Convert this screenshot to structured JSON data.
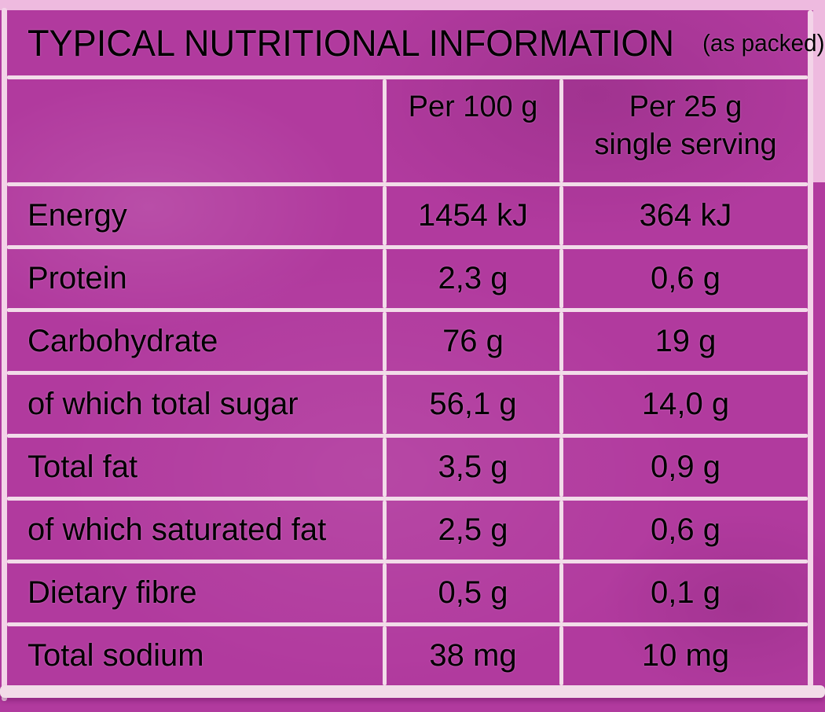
{
  "label": {
    "title": "TYPICAL NUTRITIONAL INFORMATION",
    "title_suffix": "(as packed)"
  },
  "table": {
    "column_headers": {
      "col1": "",
      "col2": "Per 100 g",
      "col3_line1": "Per 25 g",
      "col3_line2": "single serving"
    },
    "rows": [
      {
        "label": "Energy",
        "per100": "1454 kJ",
        "per25": "364 kJ"
      },
      {
        "label": "Protein",
        "per100": "2,3 g",
        "per25": "0,6 g"
      },
      {
        "label": "Carbohydrate",
        "per100": "76 g",
        "per25": "19 g"
      },
      {
        "label": "of which total sugar",
        "per100": "56,1 g",
        "per25": "14,0 g"
      },
      {
        "label": "Total fat",
        "per100": "3,5 g",
        "per25": "0,9 g"
      },
      {
        "label": "of which saturated fat",
        "per100": "2,5 g",
        "per25": "0,6 g"
      },
      {
        "label": "Dietary fibre",
        "per100": "0,5 g",
        "per25": "0,1 g"
      },
      {
        "label": "Total sodium",
        "per100": "38 mg",
        "per25": "10 mg"
      }
    ]
  },
  "colors": {
    "package_magenta": "#b13a9e",
    "edge_light_pink": "#eebadf",
    "grid_line": "#f2dce9",
    "text": "#f2d8ec"
  }
}
